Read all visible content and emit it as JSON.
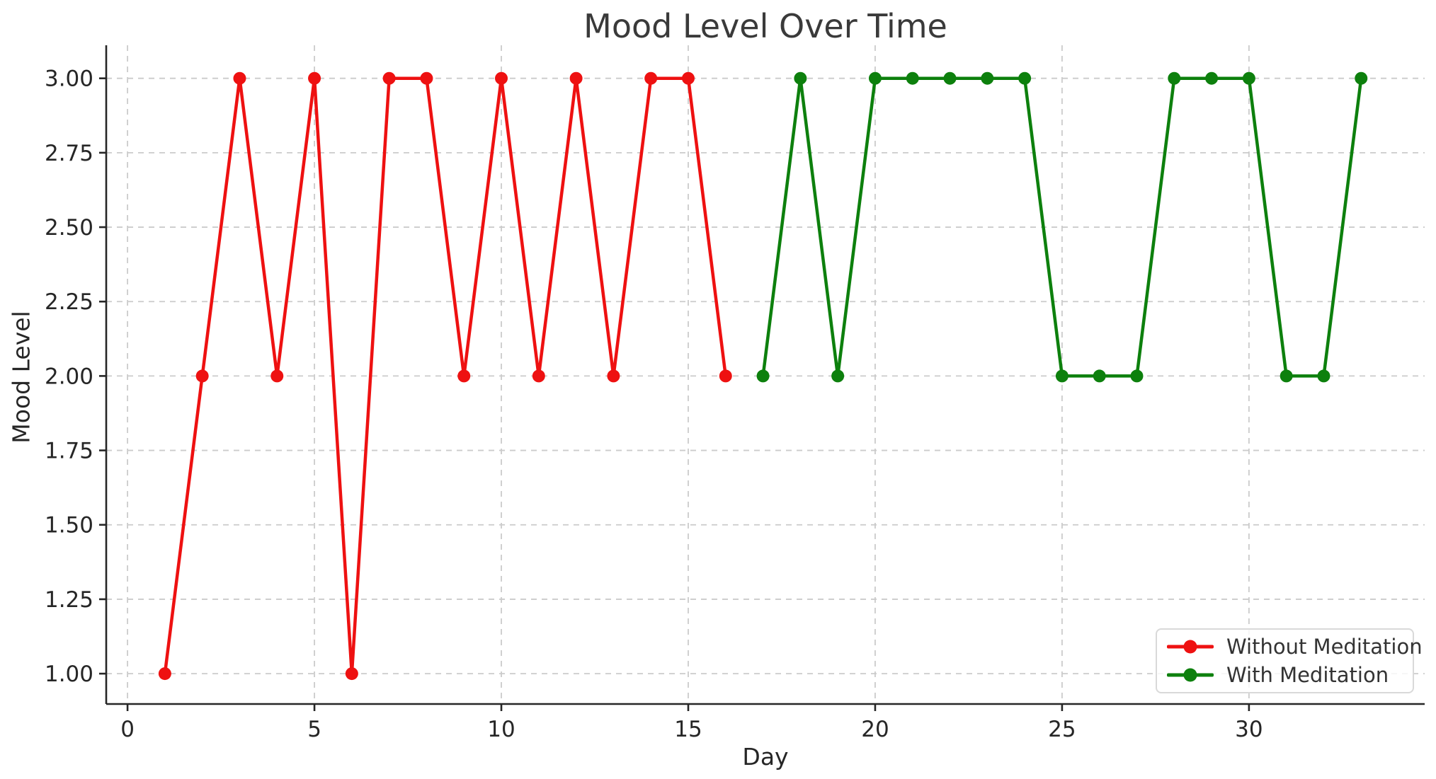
{
  "title": "Mood Level Over Time",
  "axes": {
    "xlabel": "Day",
    "ylabel": "Mood Level"
  },
  "colors": {
    "without_meditation": "#ee1111",
    "with_meditation": "#0d800d",
    "grid": "#cbcbcb",
    "spine": "#262626",
    "tick_text": "#262626",
    "title_text": "#3a3a3a"
  },
  "legend": {
    "items": [
      {
        "label": "Without Meditation",
        "color": "#ee1111"
      },
      {
        "label": "With Meditation",
        "color": "#0d800d"
      }
    ]
  },
  "chart_data": {
    "type": "line",
    "title": "Mood Level Over Time",
    "xlabel": "Day",
    "ylabel": "Mood Level",
    "xlim": [
      -0.57,
      34.7
    ],
    "ylim": [
      0.898,
      3.111
    ],
    "grid": true,
    "legend_position": "lower right",
    "x_ticks": [
      {
        "value": 0,
        "label": "0"
      },
      {
        "value": 5,
        "label": "5"
      },
      {
        "value": 10,
        "label": "10"
      },
      {
        "value": 15,
        "label": "15"
      },
      {
        "value": 20,
        "label": "20"
      },
      {
        "value": 25,
        "label": "25"
      },
      {
        "value": 30,
        "label": "30"
      }
    ],
    "y_ticks": [
      {
        "value": 1.0,
        "label": "1.00"
      },
      {
        "value": 1.25,
        "label": "1.25"
      },
      {
        "value": 1.5,
        "label": "1.50"
      },
      {
        "value": 1.75,
        "label": "1.75"
      },
      {
        "value": 2.0,
        "label": "2.00"
      },
      {
        "value": 2.25,
        "label": "2.25"
      },
      {
        "value": 2.5,
        "label": "2.50"
      },
      {
        "value": 2.75,
        "label": "2.75"
      },
      {
        "value": 3.0,
        "label": "3.00"
      }
    ],
    "series": [
      {
        "name": "Without Meditation",
        "color": "#ee1111",
        "x": [
          1,
          2,
          3,
          4,
          5,
          6,
          7,
          8,
          9,
          10,
          11,
          12,
          13,
          14,
          15,
          16
        ],
        "y": [
          1,
          2,
          3,
          2,
          3,
          1,
          3,
          3,
          2,
          3,
          2,
          3,
          2,
          3,
          3,
          2
        ]
      },
      {
        "name": "With Meditation",
        "color": "#0d800d",
        "x": [
          17,
          18,
          19,
          20,
          21,
          22,
          23,
          24,
          25,
          26,
          27,
          28,
          29,
          30,
          31,
          32,
          33
        ],
        "y": [
          2,
          3,
          2,
          3,
          3,
          3,
          3,
          3,
          2,
          2,
          2,
          3,
          3,
          3,
          2,
          2,
          3
        ]
      }
    ]
  }
}
